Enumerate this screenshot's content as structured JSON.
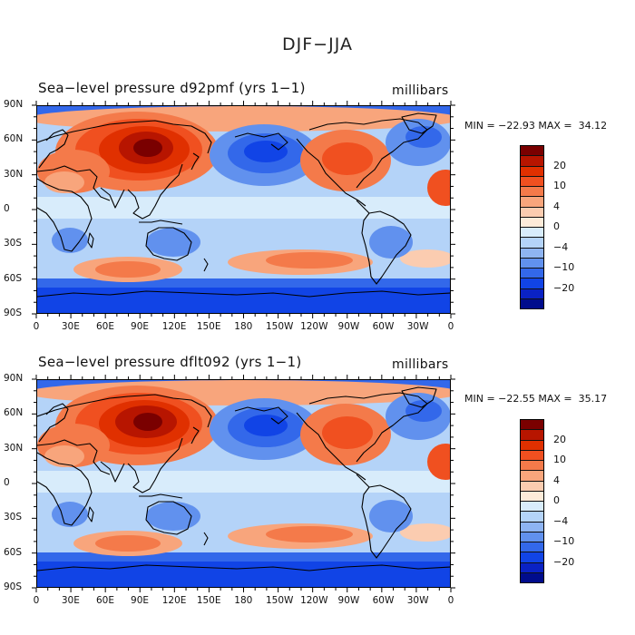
{
  "title": "DJF−JJA",
  "panels": [
    {
      "id": "top",
      "title": "Sea−level pressure d92pmf (yrs 1−1)",
      "units": "millibars",
      "minmax": "MIN = −22.93 MAX =  34.12",
      "lat_labels": [
        "90N",
        "60N",
        "30N",
        "0",
        "30S",
        "60S",
        "90S"
      ],
      "lon_labels": [
        "0",
        "30E",
        "60E",
        "90E",
        "120E",
        "150E",
        "180",
        "150W",
        "120W",
        "90W",
        "60W",
        "30W",
        "0"
      ]
    },
    {
      "id": "bottom",
      "title": "Sea−level pressure dflt092 (yrs 1−1)",
      "units": "millibars",
      "minmax": "MIN = −22.55 MAX =  35.17",
      "lat_labels": [
        "90N",
        "60N",
        "30N",
        "0",
        "30S",
        "60S",
        "90S"
      ],
      "lon_labels": [
        "0",
        "30E",
        "60E",
        "90E",
        "120E",
        "150E",
        "180",
        "150W",
        "120W",
        "90W",
        "60W",
        "30W",
        "0"
      ]
    }
  ],
  "colorbar": {
    "labels": [
      "20",
      "10",
      "4",
      "0",
      "−4",
      "−10",
      "−20"
    ],
    "colors": [
      "#7a0000",
      "#b71500",
      "#e03000",
      "#f05020",
      "#f47a4a",
      "#f8a57c",
      "#fbccb0",
      "#fdebd9",
      "#d8ecfb",
      "#b4d3f8",
      "#8eb4f2",
      "#6191ee",
      "#3368ea",
      "#1144e6",
      "#0a22c4",
      "#000c8c"
    ]
  }
}
